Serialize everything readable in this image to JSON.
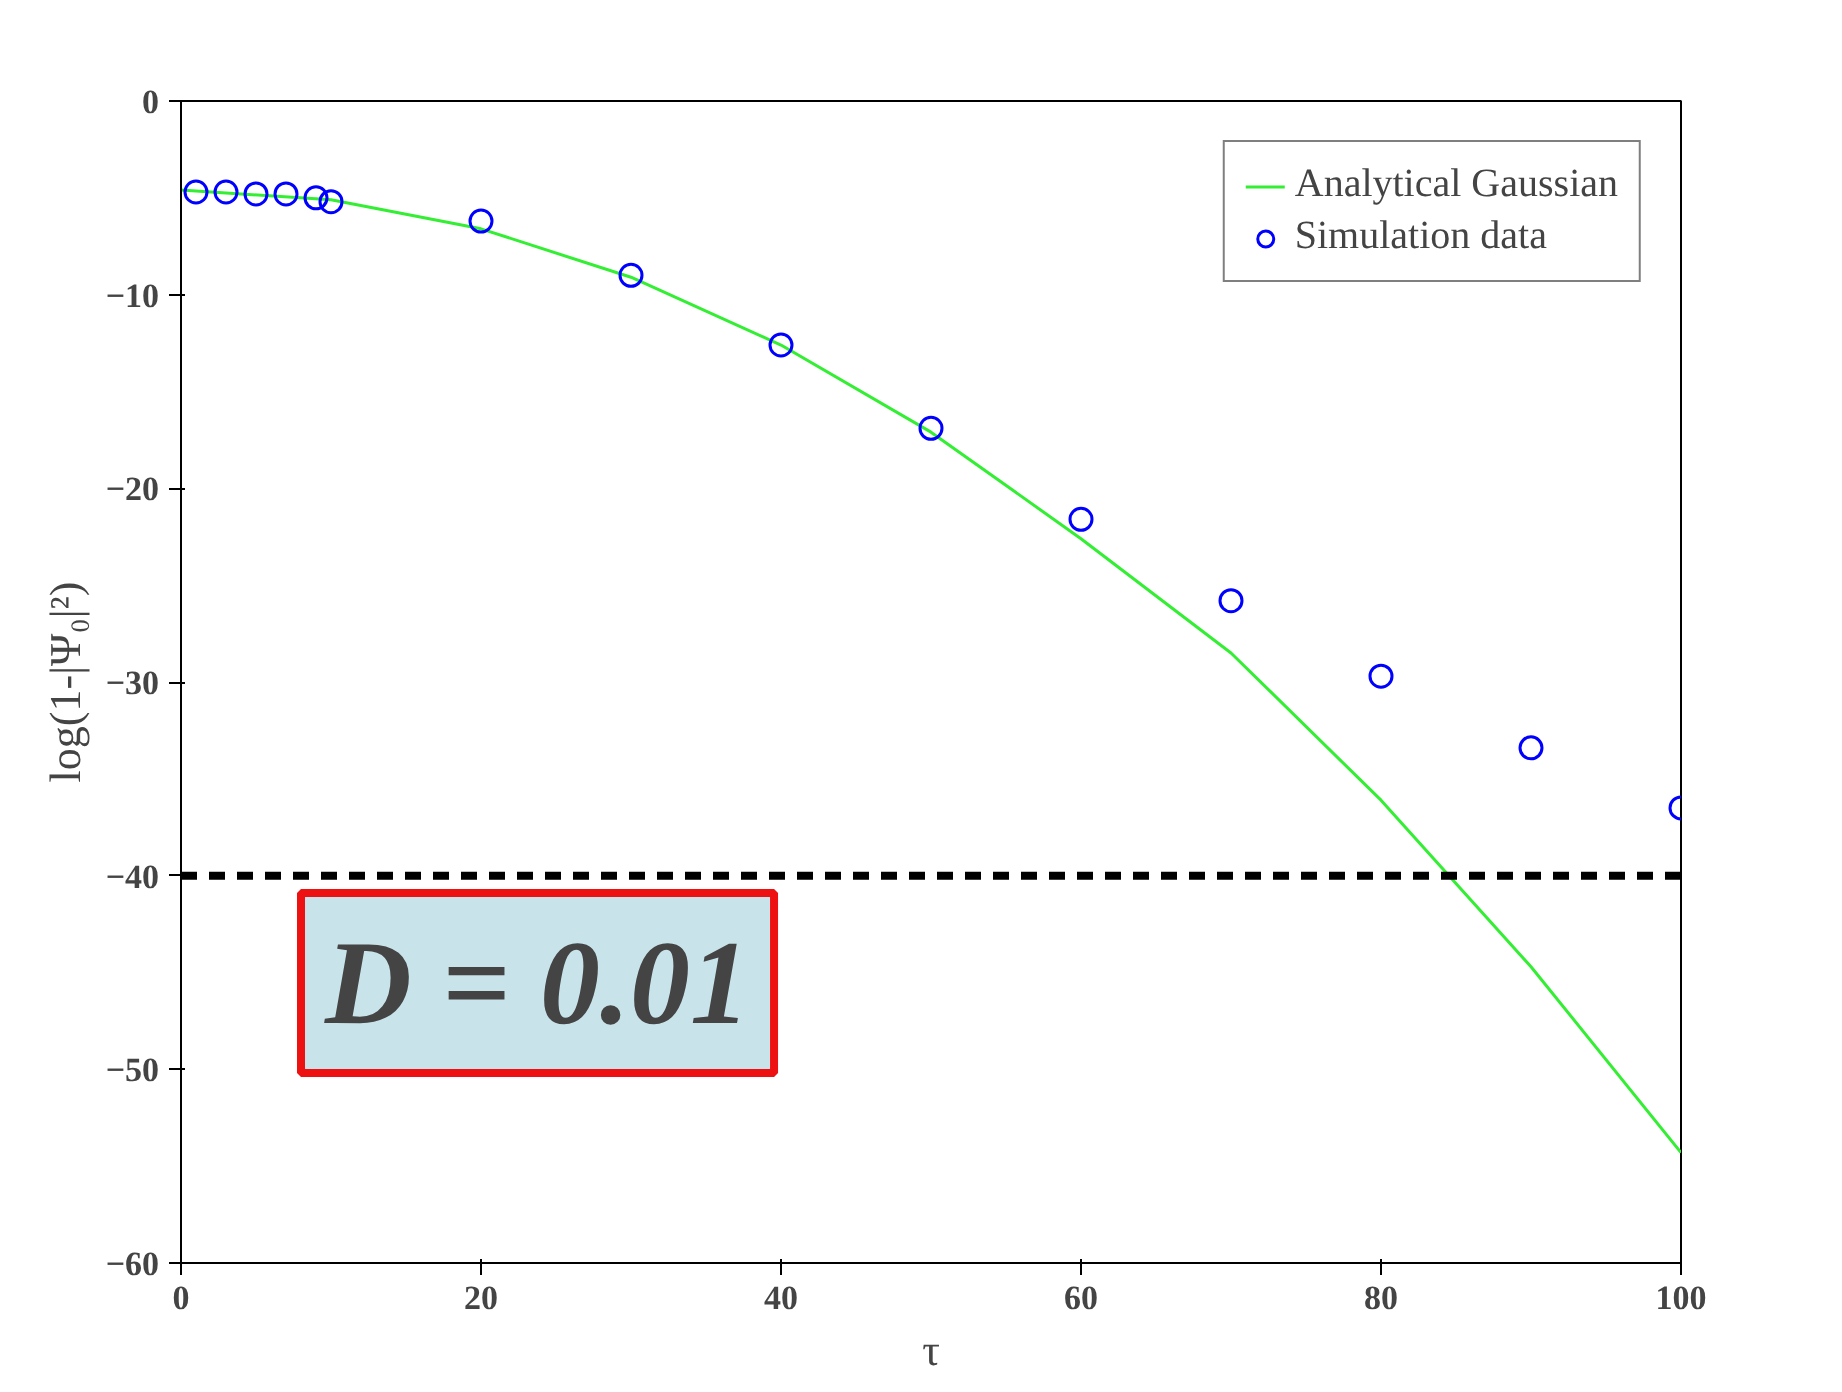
{
  "chart_data": {
    "type": "scatter",
    "xlabel": "τ",
    "ylabel": "log(1-|Ψ₀|²)",
    "xlim": [
      0,
      100
    ],
    "ylim": [
      -60,
      0
    ],
    "xticks": [
      0,
      20,
      40,
      60,
      80,
      100
    ],
    "yticks": [
      -60,
      -50,
      -40,
      -30,
      -20,
      -10,
      0
    ],
    "grid": false,
    "legend": "top right",
    "series": [
      {
        "name": "Analytical Gaussian",
        "type": "line",
        "color": "#33ee33",
        "marker": "none",
        "line_style": "solid",
        "x": [
          0,
          10,
          20,
          30,
          40,
          50,
          60,
          70,
          80,
          90,
          100
        ],
        "values": [
          -4.6,
          -5.1,
          -6.6,
          -9.1,
          -12.6,
          -17.1,
          -22.6,
          -28.5,
          -36.1,
          -44.7,
          -54.3
        ]
      },
      {
        "name": "Simulation data",
        "color": "#0000ff",
        "marker": "circle",
        "x": [
          1,
          3,
          5,
          7,
          9,
          10,
          20,
          30,
          40,
          50,
          60,
          70,
          80,
          90,
          100
        ],
        "values": [
          -4.7,
          -4.7,
          -4.8,
          -4.8,
          -5.0,
          -5.2,
          -6.2,
          -9.0,
          -12.6,
          -16.9,
          -21.6,
          -25.8,
          -29.7,
          -33.4,
          -36.5
        ]
      }
    ],
    "ref_lines": [
      {
        "axis": "y",
        "value": -40,
        "color": "#000000",
        "line_style": "dashed"
      }
    ],
    "annotations": [
      "D = 0.01"
    ]
  }
}
